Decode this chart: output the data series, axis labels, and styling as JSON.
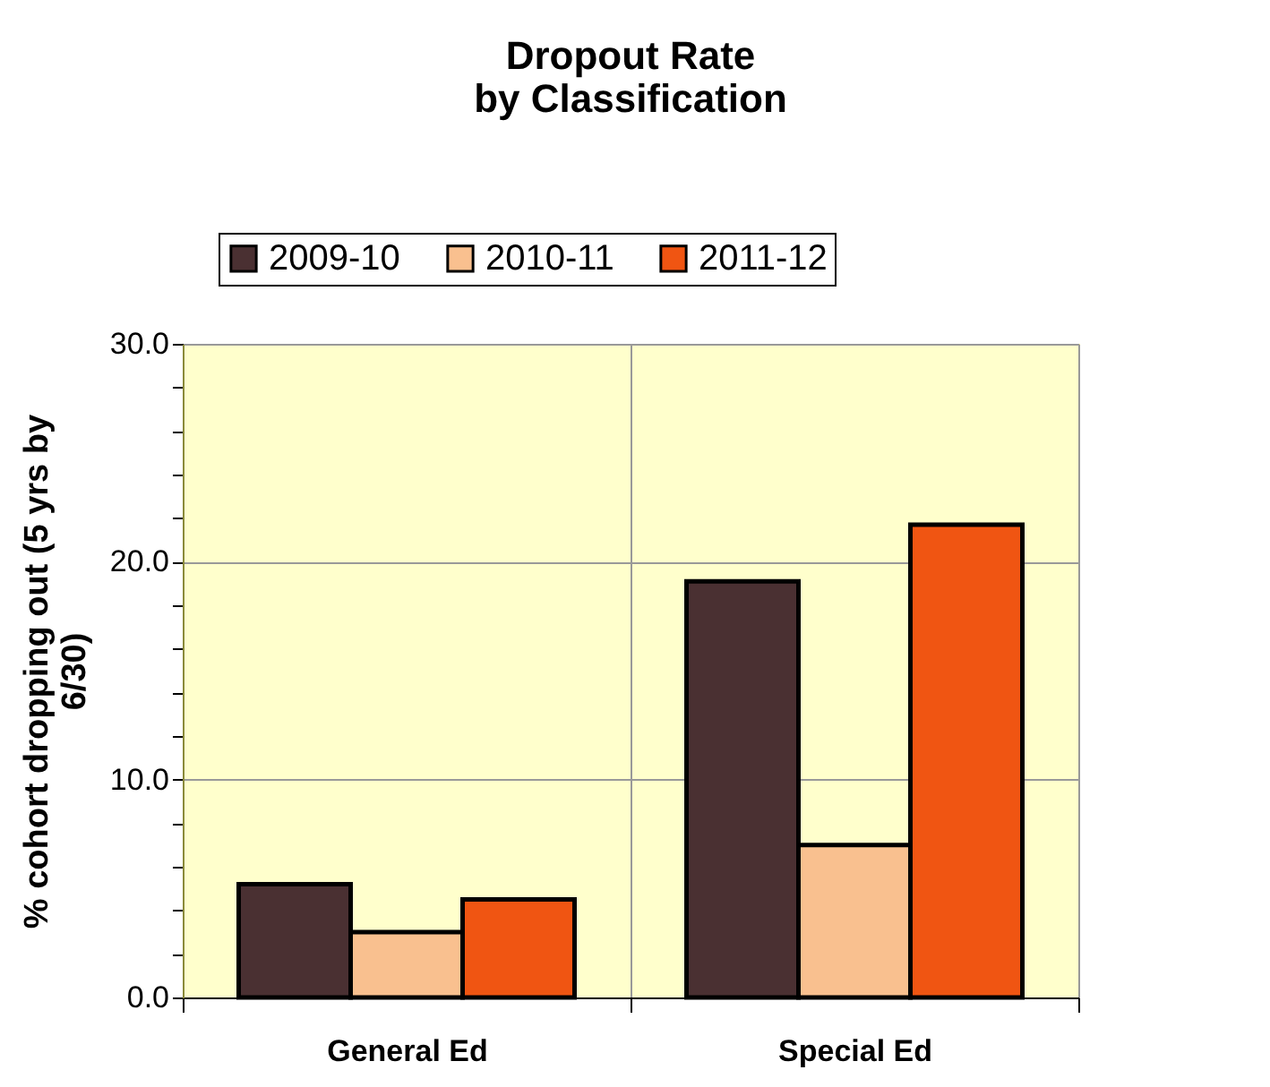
{
  "chart_data": {
    "type": "bar",
    "title": "Dropout Rate\nby Classification",
    "ylabel": "% cohort dropping out (5 yrs by\n6/30)",
    "categories": [
      "General Ed",
      "Special Ed"
    ],
    "series": [
      {
        "name": "2009-10",
        "color": "#4a3032",
        "values": [
          5.2,
          19.1
        ]
      },
      {
        "name": "2010-11",
        "color": "#f9c08f",
        "values": [
          3.0,
          7.0
        ]
      },
      {
        "name": "2011-12",
        "color": "#f05512",
        "values": [
          4.5,
          21.7
        ]
      }
    ],
    "ylim": [
      0,
      30
    ],
    "yticks": [
      {
        "value": 0,
        "label": "0.0"
      },
      {
        "value": 2,
        "label": null
      },
      {
        "value": 4,
        "label": null
      },
      {
        "value": 6,
        "label": null
      },
      {
        "value": 8,
        "label": null
      },
      {
        "value": 10,
        "label": "10.0"
      },
      {
        "value": 12,
        "label": null
      },
      {
        "value": 14,
        "label": null
      },
      {
        "value": 16,
        "label": null
      },
      {
        "value": 18,
        "label": null
      },
      {
        "value": 20,
        "label": "20.0"
      },
      {
        "value": 22,
        "label": null
      },
      {
        "value": 24,
        "label": null
      },
      {
        "value": 26,
        "label": null
      },
      {
        "value": 28,
        "label": null
      },
      {
        "value": 30,
        "label": "30.0"
      }
    ],
    "grid": true,
    "legend": "top"
  }
}
